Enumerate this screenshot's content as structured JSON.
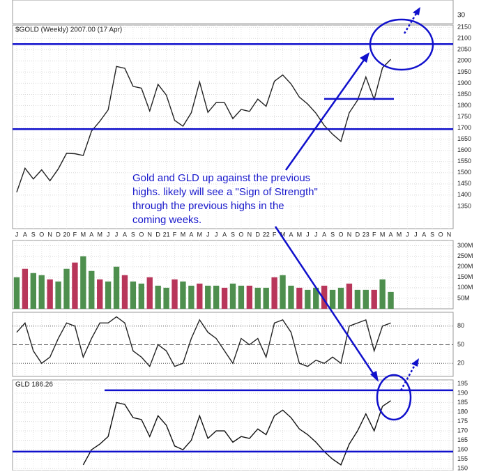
{
  "cutoff_tick": "30",
  "annotation": [
    "Gold and GLD up against the previous",
    "highs.  likely will see a \"Sign of Strength\"",
    "through the previous highs in the",
    "coming weeks."
  ],
  "chart_data": [
    {
      "type": "line",
      "title": "$GOLD (Weekly) 2007.00 (17 Apr)",
      "color": "#222222",
      "categories": [
        "J",
        "A",
        "S",
        "O",
        "N",
        "D",
        "20",
        "F",
        "M",
        "A",
        "M",
        "J",
        "J",
        "A",
        "S",
        "O",
        "N",
        "D",
        "21",
        "F",
        "M",
        "A",
        "M",
        "J",
        "J",
        "A",
        "S",
        "O",
        "N",
        "D",
        "22",
        "F",
        "M",
        "A",
        "M",
        "J",
        "J",
        "A",
        "S",
        "O",
        "N",
        "D",
        "23",
        "F",
        "M",
        "A",
        "M",
        "J",
        "J",
        "A",
        "S",
        "O",
        "N"
      ],
      "values": [
        1413,
        1520,
        1472,
        1513,
        1464,
        1517,
        1587,
        1585,
        1577,
        1686,
        1730,
        1781,
        1975,
        1967,
        1886,
        1878,
        1776,
        1895,
        1847,
        1734,
        1708,
        1768,
        1906,
        1770,
        1814,
        1813,
        1742,
        1783,
        1774,
        1829,
        1797,
        1909,
        1937,
        1897,
        1838,
        1807,
        1766,
        1711,
        1672,
        1640,
        1768,
        1824,
        1928,
        1827,
        1969,
        2007,
        null,
        null,
        null,
        null,
        null,
        null,
        null
      ],
      "ylim": [
        1250,
        2160
      ],
      "yticks": [
        1350,
        1400,
        1450,
        1500,
        1550,
        1600,
        1650,
        1700,
        1750,
        1800,
        1850,
        1900,
        1950,
        2000,
        2050,
        2100,
        2150
      ],
      "levels": [
        2075,
        1695,
        1830
      ],
      "level_color": "#1010cc",
      "grid": true
    },
    {
      "type": "bar",
      "color": "#4e8f4e",
      "values": [
        150,
        190,
        170,
        160,
        140,
        130,
        190,
        220,
        250,
        180,
        140,
        130,
        200,
        160,
        130,
        120,
        150,
        110,
        100,
        140,
        130,
        110,
        120,
        110,
        110,
        100,
        120,
        110,
        110,
        100,
        100,
        150,
        160,
        110,
        100,
        90,
        100,
        110,
        90,
        100,
        120,
        90,
        90,
        90,
        140,
        80,
        null,
        null,
        null,
        null,
        null,
        null,
        null
      ],
      "ylim": [
        0,
        325
      ],
      "yticks": [
        {
          "value": 50,
          "label": "50M"
        },
        {
          "value": 100,
          "label": "100M"
        },
        {
          "value": 150,
          "label": "150M"
        },
        {
          "value": 200,
          "label": "200M"
        },
        {
          "value": 250,
          "label": "250M"
        },
        {
          "value": 300,
          "label": "300M"
        }
      ],
      "grid": true
    },
    {
      "type": "line",
      "color": "#222222",
      "values": [
        70,
        85,
        40,
        20,
        30,
        60,
        85,
        80,
        30,
        60,
        85,
        85,
        95,
        85,
        40,
        30,
        15,
        50,
        40,
        15,
        20,
        60,
        90,
        70,
        60,
        40,
        20,
        60,
        50,
        60,
        30,
        85,
        90,
        70,
        20,
        15,
        25,
        20,
        30,
        20,
        80,
        85,
        90,
        40,
        80,
        85,
        null,
        null,
        null,
        null,
        null,
        null,
        null
      ],
      "ylim": [
        0,
        100
      ],
      "yticks": [
        20,
        50,
        80
      ],
      "grid": true
    },
    {
      "type": "line",
      "title": "GLD 186.26",
      "color": "#111111",
      "values": [
        null,
        null,
        null,
        null,
        null,
        null,
        null,
        null,
        152,
        160,
        163,
        167,
        185,
        184,
        177,
        176,
        167,
        178,
        173,
        162,
        160,
        165,
        178,
        166,
        170,
        170,
        164,
        167,
        166,
        171,
        168,
        178,
        181,
        177,
        171,
        168,
        164,
        159,
        155,
        152,
        163,
        170,
        179,
        170,
        183,
        186,
        null,
        null,
        null,
        null,
        null,
        null,
        null
      ],
      "ylim": [
        149,
        197
      ],
      "yticks": [
        150,
        155,
        160,
        165,
        170,
        175,
        180,
        185,
        190,
        195
      ],
      "levels": [
        191.5,
        159
      ],
      "level_color": "#1010cc",
      "grid": true
    }
  ]
}
